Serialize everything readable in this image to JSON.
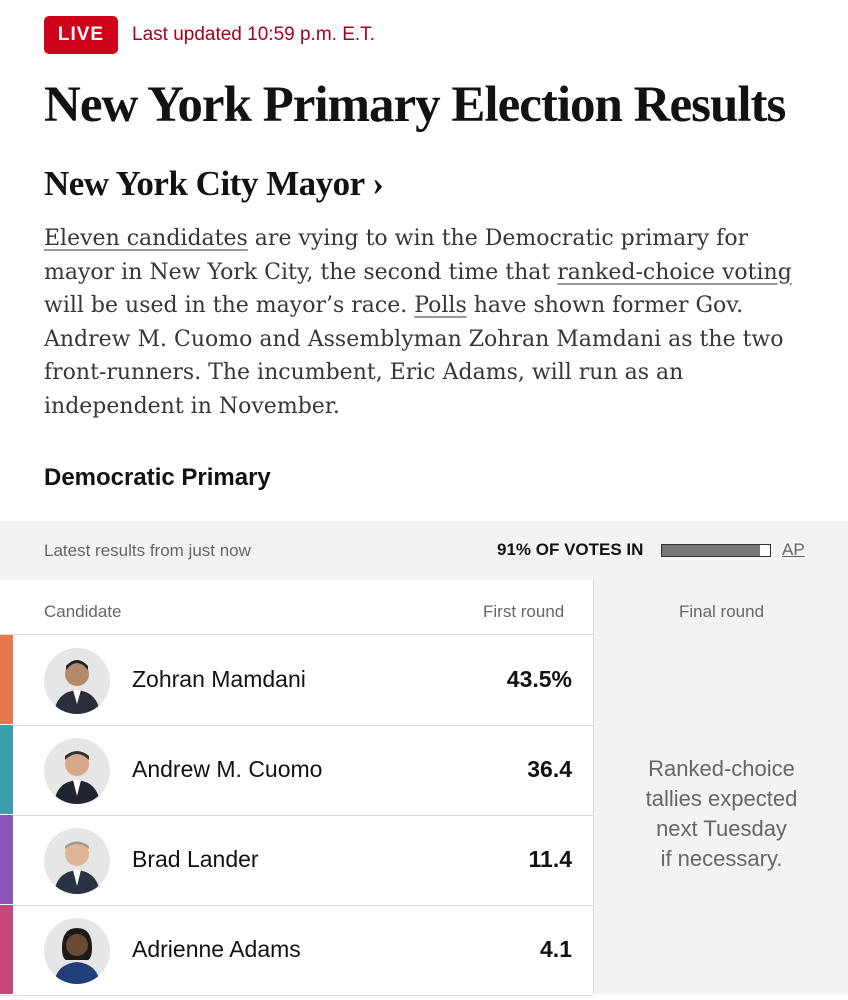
{
  "header": {
    "live_label": "LIVE",
    "updated_text": "Last updated 10:59 p.m. E.T.",
    "headline": "New York Primary Election Results",
    "race_link": "New York City Mayor ›"
  },
  "intro": {
    "link1": "Eleven candidates",
    "text1": " are vying to win the Democratic primary for mayor in New York City, the second time that ",
    "link2": "ranked-choice voting",
    "text2": " will be used in the mayor’s race. ",
    "link3": "Polls",
    "text3": " have shown former Gov. Andrew M. Cuomo and Assemblyman Zohran Mamdani as the two front-runners. The incumbent, Eric Adams, will run as an independent in November."
  },
  "section_title": "Democratic Primary",
  "results_meta": {
    "latest": "Latest results from just now",
    "votes_in_label": "91% OF VOTES IN",
    "votes_in_fraction": 0.91,
    "source": "AP"
  },
  "table": {
    "col_candidate": "Candidate",
    "col_first": "First round",
    "col_final": "Final round",
    "final_note_lines": [
      "Ranked-choice",
      "tallies expected",
      "next Tuesday",
      "if necessary."
    ],
    "rows": [
      {
        "name": "Zohran Mamdani",
        "pct": "43.5%",
        "color": "#e8774c"
      },
      {
        "name": "Andrew M. Cuomo",
        "pct": "36.4",
        "color": "#3a9fad"
      },
      {
        "name": "Brad Lander",
        "pct": "11.4",
        "color": "#8c56b8"
      },
      {
        "name": "Adrienne Adams",
        "pct": "4.1",
        "color": "#c8467e"
      }
    ]
  }
}
